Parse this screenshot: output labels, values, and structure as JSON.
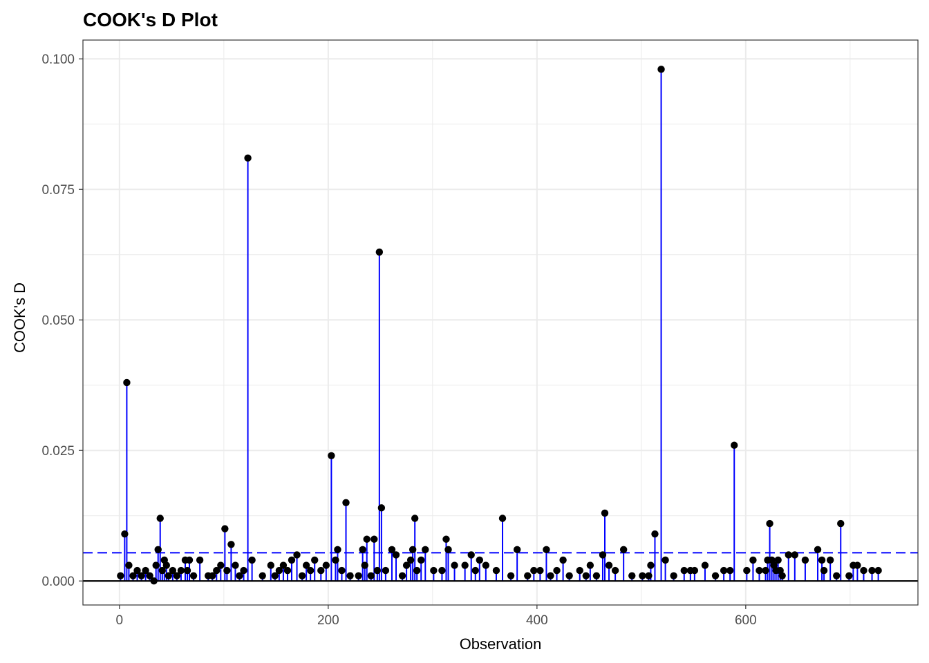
{
  "chart_data": {
    "type": "scatter",
    "title": "COOK's D Plot",
    "xlabel": "Observation",
    "ylabel": "COOK's D",
    "xlim": [
      -35,
      765
    ],
    "ylim": [
      -0.0046,
      0.1036
    ],
    "xticks": [
      0,
      200,
      400,
      600
    ],
    "xtick_labels": [
      "0",
      "200",
      "400",
      "600"
    ],
    "yticks": [
      0.0,
      0.025,
      0.05,
      0.075,
      0.1
    ],
    "ytick_labels": [
      "0.000",
      "0.025",
      "0.050",
      "0.075",
      "0.100"
    ],
    "grid": true,
    "threshold": 0.0054,
    "colors": {
      "stem": "#0000ff",
      "threshold": "#0000ff",
      "point": "#000000",
      "zero_line": "#000000",
      "grid": "#ebebeb",
      "panel_border": "#333333"
    },
    "series": [
      {
        "x": [
          1,
          5,
          7,
          9,
          13,
          17,
          21,
          25,
          29,
          33,
          35,
          37,
          39,
          41,
          43,
          45,
          47,
          51,
          55,
          59,
          63,
          65,
          67,
          71,
          77,
          85,
          89,
          93,
          97,
          101,
          103,
          107,
          111,
          115,
          119,
          123,
          127,
          137,
          145,
          149,
          153,
          157,
          161,
          165,
          170,
          175,
          179,
          183,
          187,
          193,
          198,
          203,
          207,
          209,
          213,
          217,
          221,
          229,
          233,
          235,
          237,
          241,
          244,
          247,
          249,
          251,
          255,
          261,
          265,
          271,
          275,
          279,
          281,
          283,
          285,
          289,
          293,
          301,
          309,
          313,
          315,
          321,
          331,
          337,
          341,
          345,
          351,
          361,
          367,
          375,
          381,
          391,
          397,
          403,
          409,
          413,
          419,
          425,
          431,
          441,
          447,
          451,
          457,
          463,
          465,
          469,
          475,
          483,
          491,
          501,
          507,
          509,
          513,
          519,
          523,
          531,
          541,
          547,
          551,
          561,
          571,
          579,
          585,
          589,
          601,
          607,
          613,
          619,
          621,
          623,
          625,
          627,
          629,
          631,
          633,
          635,
          641,
          647,
          657,
          669,
          673,
          675,
          681,
          687,
          691,
          699,
          703,
          707,
          713,
          721,
          727
        ],
        "values": [
          0.001,
          0.009,
          0.038,
          0.003,
          0.001,
          0.002,
          0.001,
          0.002,
          0.001,
          0.0,
          0.003,
          0.006,
          0.012,
          0.002,
          0.004,
          0.003,
          0.001,
          0.002,
          0.001,
          0.002,
          0.004,
          0.002,
          0.004,
          0.001,
          0.004,
          0.001,
          0.001,
          0.002,
          0.003,
          0.01,
          0.002,
          0.007,
          0.003,
          0.001,
          0.002,
          0.081,
          0.004,
          0.001,
          0.003,
          0.001,
          0.002,
          0.003,
          0.002,
          0.004,
          0.005,
          0.001,
          0.003,
          0.002,
          0.004,
          0.002,
          0.003,
          0.024,
          0.004,
          0.006,
          0.002,
          0.015,
          0.001,
          0.001,
          0.006,
          0.003,
          0.008,
          0.001,
          0.008,
          0.002,
          0.063,
          0.014,
          0.002,
          0.006,
          0.005,
          0.001,
          0.003,
          0.004,
          0.006,
          0.012,
          0.002,
          0.004,
          0.006,
          0.002,
          0.002,
          0.008,
          0.006,
          0.003,
          0.003,
          0.005,
          0.002,
          0.004,
          0.003,
          0.002,
          0.012,
          0.001,
          0.006,
          0.001,
          0.002,
          0.002,
          0.006,
          0.001,
          0.002,
          0.004,
          0.001,
          0.002,
          0.001,
          0.003,
          0.001,
          0.005,
          0.013,
          0.003,
          0.002,
          0.006,
          0.001,
          0.001,
          0.001,
          0.003,
          0.009,
          0.098,
          0.004,
          0.001,
          0.002,
          0.002,
          0.002,
          0.003,
          0.001,
          0.002,
          0.002,
          0.026,
          0.002,
          0.004,
          0.002,
          0.002,
          0.004,
          0.011,
          0.004,
          0.003,
          0.002,
          0.004,
          0.002,
          0.001,
          0.005,
          0.005,
          0.004,
          0.006,
          0.004,
          0.002,
          0.004,
          0.001,
          0.011,
          0.001,
          0.003,
          0.003,
          0.002,
          0.002,
          0.002
        ]
      }
    ]
  }
}
